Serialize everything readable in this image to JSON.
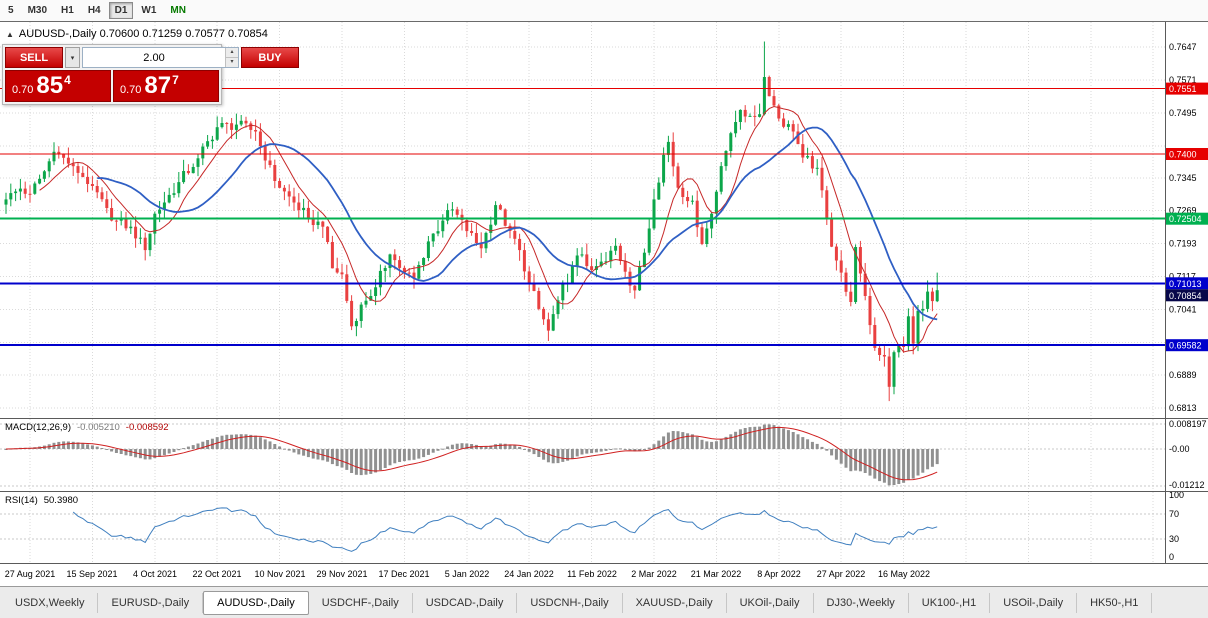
{
  "toolbar": {
    "timeframes": [
      {
        "label": "5",
        "active": false,
        "accent": false
      },
      {
        "label": "M30",
        "active": false,
        "accent": false
      },
      {
        "label": "H1",
        "active": false,
        "accent": false
      },
      {
        "label": "H4",
        "active": false,
        "accent": false
      },
      {
        "label": "D1",
        "active": true,
        "accent": false
      },
      {
        "label": "W1",
        "active": false,
        "accent": false
      },
      {
        "label": "MN",
        "active": false,
        "accent": true
      }
    ]
  },
  "chart_header": {
    "title": "AUDUSD-,Daily 0.70600 0.71259 0.70577 0.70854"
  },
  "trade_panel": {
    "sell_label": "SELL",
    "buy_label": "BUY",
    "volume": "2.00",
    "sell_price": {
      "prefix": "0.70",
      "big": "85",
      "sup": "4"
    },
    "buy_price": {
      "prefix": "0.70",
      "big": "87",
      "sup": "7"
    },
    "accent_color": "#c40000"
  },
  "chart_data": {
    "type": "candlestick",
    "symbol": "AUDUSD-",
    "timeframe": "Daily",
    "ohlc_display": {
      "open": "0.70600",
      "high": "0.71259",
      "low": "0.70577",
      "close": "0.70854"
    },
    "price_axis": {
      "plain_ticks": [
        0.7647,
        0.7571,
        0.7495,
        0.7345,
        0.7269,
        0.7193,
        0.7117,
        0.7041,
        0.6889,
        0.6813
      ],
      "grid_ticks": [
        0.7647,
        0.7571,
        0.7495,
        0.7419,
        0.7345,
        0.7269,
        0.7193,
        0.7117,
        0.7041,
        0.6965,
        0.6889,
        0.6813
      ],
      "p_top": 0.7705,
      "p_bottom": 0.679
    },
    "hlines": [
      {
        "price": 0.7551,
        "label": "0.7551",
        "color": "#e60000",
        "width": 1
      },
      {
        "price": 0.74,
        "label": "0.7400",
        "color": "#e60000",
        "width": 1
      },
      {
        "price": 0.72504,
        "label": "0.72504",
        "color": "#00b050",
        "width": 2
      },
      {
        "price": 0.71013,
        "label": "0.71013",
        "color": "#0000cc",
        "width": 2
      },
      {
        "price": 0.69582,
        "label": "0.69582",
        "color": "#0000cc",
        "width": 2
      }
    ],
    "current_price": {
      "value": 0.70854,
      "label": "0.70854",
      "bg": "#07074a"
    },
    "date_labels": [
      "27 Aug 2021",
      "15 Sep 2021",
      "4 Oct 2021",
      "22 Oct 2021",
      "10 Nov 2021",
      "29 Nov 2021",
      "17 Dec 2021",
      "5 Jan 2022",
      "24 Jan 2022",
      "11 Feb 2022",
      "2 Mar 2022",
      "21 Mar 2022",
      "8 Apr 2022",
      "27 Apr 2022",
      "16 May 2022"
    ],
    "label_indices": [
      5,
      18,
      31,
      44,
      57,
      70,
      83,
      96,
      109,
      122,
      135,
      148,
      161,
      174,
      187
    ],
    "candle_count": 195,
    "noise": 0.0013,
    "wick": 0.0026,
    "close_anchors": [
      [
        0,
        0.7295
      ],
      [
        3,
        0.732
      ],
      [
        5,
        0.7308
      ],
      [
        8,
        0.736
      ],
      [
        10,
        0.7405
      ],
      [
        14,
        0.7372
      ],
      [
        18,
        0.7326
      ],
      [
        22,
        0.7246
      ],
      [
        26,
        0.7232
      ],
      [
        29,
        0.7178
      ],
      [
        31,
        0.7262
      ],
      [
        33,
        0.7288
      ],
      [
        36,
        0.7335
      ],
      [
        40,
        0.739
      ],
      [
        44,
        0.7462
      ],
      [
        48,
        0.7468
      ],
      [
        52,
        0.7452
      ],
      [
        54,
        0.7385
      ],
      [
        57,
        0.7322
      ],
      [
        60,
        0.7288
      ],
      [
        63,
        0.7252
      ],
      [
        66,
        0.7232
      ],
      [
        68,
        0.7136
      ],
      [
        70,
        0.7122
      ],
      [
        72,
        0.7002
      ],
      [
        74,
        0.7052
      ],
      [
        77,
        0.7092
      ],
      [
        80,
        0.7168
      ],
      [
        83,
        0.7126
      ],
      [
        85,
        0.7112
      ],
      [
        88,
        0.7198
      ],
      [
        91,
        0.7246
      ],
      [
        93,
        0.7272
      ],
      [
        96,
        0.7222
      ],
      [
        99,
        0.7182
      ],
      [
        102,
        0.7282
      ],
      [
        105,
        0.7222
      ],
      [
        107,
        0.7178
      ],
      [
        109,
        0.7102
      ],
      [
        111,
        0.7042
      ],
      [
        113,
        0.6992
      ],
      [
        115,
        0.7062
      ],
      [
        118,
        0.7142
      ],
      [
        120,
        0.7168
      ],
      [
        122,
        0.7132
      ],
      [
        125,
        0.7152
      ],
      [
        127,
        0.7188
      ],
      [
        129,
        0.7128
      ],
      [
        131,
        0.7085
      ],
      [
        133,
        0.7172
      ],
      [
        135,
        0.7295
      ],
      [
        137,
        0.7398
      ],
      [
        138,
        0.7428
      ],
      [
        140,
        0.7322
      ],
      [
        143,
        0.7292
      ],
      [
        145,
        0.7192
      ],
      [
        147,
        0.7262
      ],
      [
        149,
        0.7372
      ],
      [
        151,
        0.7448
      ],
      [
        153,
        0.7502
      ],
      [
        155,
        0.7488
      ],
      [
        157,
        0.7492
      ],
      [
        158,
        0.7578
      ],
      [
        160,
        0.7512
      ],
      [
        161,
        0.7482
      ],
      [
        164,
        0.7452
      ],
      [
        166,
        0.7392
      ],
      [
        169,
        0.7368
      ],
      [
        171,
        0.7252
      ],
      [
        172,
        0.7186
      ],
      [
        174,
        0.7126
      ],
      [
        176,
        0.7058
      ],
      [
        177,
        0.7185
      ],
      [
        179,
        0.7072
      ],
      [
        181,
        0.6952
      ],
      [
        183,
        0.6932
      ],
      [
        184,
        0.6862
      ],
      [
        185,
        0.6942
      ],
      [
        187,
        0.6956
      ],
      [
        188,
        0.7025
      ],
      [
        189,
        0.6962
      ],
      [
        190,
        0.7038
      ],
      [
        191,
        0.7042
      ],
      [
        192,
        0.7082
      ],
      [
        193,
        0.706
      ],
      [
        194,
        0.70854
      ]
    ],
    "spikes": [
      {
        "i": 158,
        "high": 0.766
      },
      {
        "i": 138,
        "high": 0.7442
      },
      {
        "i": 184,
        "low": 0.6829
      },
      {
        "i": 113,
        "low": 0.6968
      },
      {
        "i": 72,
        "low": 0.6993
      }
    ],
    "last_candle": {
      "open": 0.706,
      "high": 0.71259,
      "low": 0.70577,
      "close": 0.70854
    },
    "ma_fast_period": 8,
    "ma_slow_period": 20,
    "colors": {
      "bull": "#0ca64a",
      "bear": "#e94040",
      "ma_fast": "#c62828",
      "ma_slow": "#2f5fc4",
      "grid": "#dadada"
    },
    "macd": {
      "label": "MACD(12,26,9)",
      "value_main": "-0.005210",
      "value_signal": "-0.008592",
      "axis_labels": [
        "0.008197",
        "-0.00",
        "-0.01212"
      ],
      "axis_values": [
        0.008197,
        0,
        -0.01212
      ],
      "fast": 12,
      "slow": 26,
      "signal": 9,
      "hist_color": "#909090",
      "signal_color": "#d02020"
    },
    "rsi": {
      "label": "RSI(14)",
      "value_text": "50.3980",
      "axis_labels": [
        "100",
        "70",
        "30",
        "0"
      ],
      "axis_values": [
        100,
        70,
        30,
        0
      ],
      "levels": [
        70,
        30
      ],
      "period": 14,
      "color": "#3f7fbf"
    }
  },
  "bottom_tabs": [
    {
      "label": "USDX,Weekly",
      "active": false
    },
    {
      "label": "EURUSD-,Daily",
      "active": false
    },
    {
      "label": "AUDUSD-,Daily",
      "active": true
    },
    {
      "label": "USDCHF-,Daily",
      "active": false
    },
    {
      "label": "USDCAD-,Daily",
      "active": false
    },
    {
      "label": "USDCNH-,Daily",
      "active": false
    },
    {
      "label": "XAUUSD-,Daily",
      "active": false
    },
    {
      "label": "UKOil-,Daily",
      "active": false
    },
    {
      "label": "DJ30-,Weekly",
      "active": false
    },
    {
      "label": "UK100-,H1",
      "active": false
    },
    {
      "label": "USOil-,Daily",
      "active": false
    },
    {
      "label": "HK50-,H1",
      "active": false
    }
  ]
}
